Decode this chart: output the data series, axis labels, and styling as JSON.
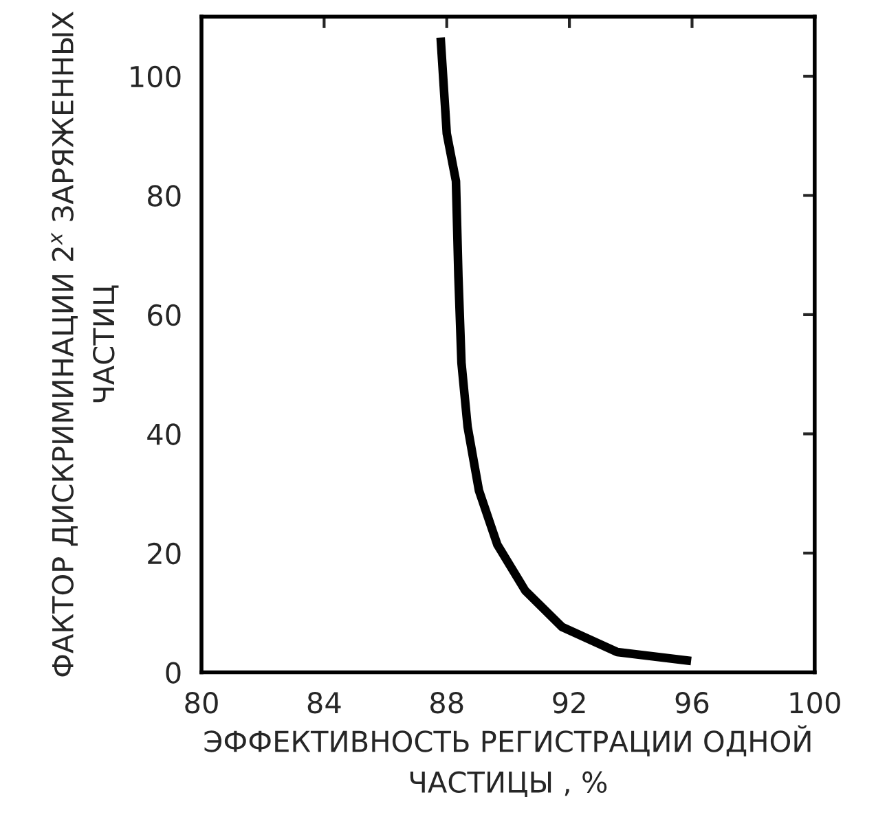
{
  "chart_data": {
    "type": "line",
    "xlabel": "ЭФФЕКТИВНОСТЬ РЕГИСТРАЦИИ ОДНОЙ\nЧАСТИЦЫ , %",
    "ylabel": "ФАКТОР ДИСКРИМИНАЦИИ 2$^{x}$ ЗАРЯЖЕННЫХ\nЧАСТИЦ",
    "series": [
      {
        "color": "#000000",
        "x": [
          87.8,
          88.0,
          88.3,
          88.38,
          88.48,
          88.68,
          89.05,
          89.65,
          90.56,
          91.76,
          93.56,
          95.97
        ],
        "values": [
          106.5,
          90.4,
          82.4,
          66.4,
          51.9,
          41.2,
          30.5,
          21.4,
          13.7,
          7.6,
          3.4,
          1.9
        ]
      }
    ],
    "xlim": [
      80,
      100
    ],
    "xticks": [
      80,
      84,
      88,
      92,
      96,
      100
    ],
    "ylim": [
      0,
      110
    ],
    "yticks": [
      0,
      20,
      40,
      60,
      80,
      100
    ],
    "grid": false,
    "legend": false,
    "line_style": "solid"
  }
}
